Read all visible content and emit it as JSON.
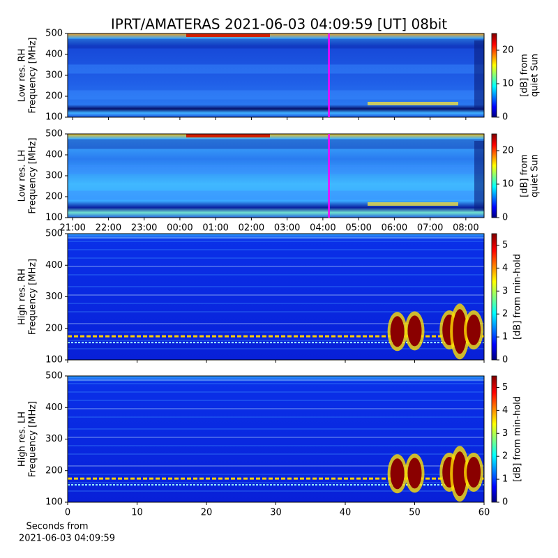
{
  "title": "IPRT/AMATERAS 2021-06-03 04:09:59 [UT]   08bit",
  "xlabel_lines": [
    "Seconds from",
    "2021-06-03 04:09:59"
  ],
  "chart_data": [
    {
      "type": "heatmap",
      "ylabel_lines": [
        "Low res. RH",
        "Frequency [MHz]"
      ],
      "xlim": [
        20.86,
        32.51
      ],
      "xticks": [
        {
          "value": 21,
          "label": "21:00"
        },
        {
          "value": 22,
          "label": "22:00"
        },
        {
          "value": 23,
          "label": "23:00"
        },
        {
          "value": 24,
          "label": "00:00"
        },
        {
          "value": 25,
          "label": "01:00"
        },
        {
          "value": 26,
          "label": "02:00"
        },
        {
          "value": 27,
          "label": "03:00"
        },
        {
          "value": 28,
          "label": "04:00"
        },
        {
          "value": 29,
          "label": "05:00"
        },
        {
          "value": 30,
          "label": "06:00"
        },
        {
          "value": 31,
          "label": "07:00"
        },
        {
          "value": 32,
          "label": "08:00"
        }
      ],
      "show_xticklabels": false,
      "marker_x": 28.17,
      "marker_color": "#ff00ff",
      "ylim": [
        100,
        500
      ],
      "yticks": [
        100,
        200,
        300,
        400,
        500
      ],
      "colorbar": {
        "label_lines": [
          "[dB] from",
          "quiet Sun"
        ],
        "lim": [
          0,
          25
        ],
        "ticks": [
          0,
          10,
          20
        ]
      }
    },
    {
      "type": "heatmap",
      "ylabel_lines": [
        "Low res. LH",
        "Frequency [MHz]"
      ],
      "xlim": [
        20.86,
        32.51
      ],
      "xticks": [
        {
          "value": 21,
          "label": "21:00"
        },
        {
          "value": 22,
          "label": "22:00"
        },
        {
          "value": 23,
          "label": "23:00"
        },
        {
          "value": 24,
          "label": "00:00"
        },
        {
          "value": 25,
          "label": "01:00"
        },
        {
          "value": 26,
          "label": "02:00"
        },
        {
          "value": 27,
          "label": "03:00"
        },
        {
          "value": 28,
          "label": "04:00"
        },
        {
          "value": 29,
          "label": "05:00"
        },
        {
          "value": 30,
          "label": "06:00"
        },
        {
          "value": 31,
          "label": "07:00"
        },
        {
          "value": 32,
          "label": "08:00"
        }
      ],
      "show_xticklabels": true,
      "marker_x": 28.17,
      "marker_color": "#ff00ff",
      "ylim": [
        100,
        500
      ],
      "yticks": [
        100,
        200,
        300,
        400,
        500
      ],
      "colorbar": {
        "label_lines": [
          "[dB] from",
          "quiet Sun"
        ],
        "lim": [
          0,
          25
        ],
        "ticks": [
          0,
          10,
          20
        ]
      }
    },
    {
      "type": "heatmap",
      "ylabel_lines": [
        "High res. RH",
        "Frequency [MHz]"
      ],
      "xlim": [
        0,
        60
      ],
      "xticks": [
        0,
        10,
        20,
        30,
        40,
        50,
        60
      ],
      "show_xticklabels": false,
      "ylim": [
        100,
        500
      ],
      "yticks": [
        100,
        200,
        300,
        400,
        500
      ],
      "colorbar": {
        "label_lines": [
          "[dB] from min-hold"
        ],
        "lim": [
          0,
          5.5
        ],
        "ticks": [
          0,
          1,
          2,
          3,
          4,
          5
        ]
      }
    },
    {
      "type": "heatmap",
      "ylabel_lines": [
        "High res. LH",
        "Frequency [MHz]"
      ],
      "xlim": [
        0,
        60
      ],
      "xticks": [
        0,
        10,
        20,
        30,
        40,
        50,
        60
      ],
      "show_xticklabels": true,
      "ylim": [
        100,
        500
      ],
      "yticks": [
        100,
        200,
        300,
        400,
        500
      ],
      "colorbar": {
        "label_lines": [
          "[dB] from min-hold"
        ],
        "lim": [
          0,
          5.5
        ],
        "ticks": [
          0,
          1,
          2,
          3,
          4,
          5
        ]
      }
    }
  ]
}
